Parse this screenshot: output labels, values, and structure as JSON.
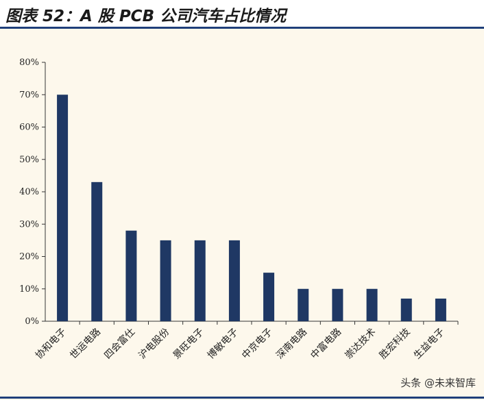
{
  "title": "图表 52：A 股 PCB 公司汽车占比情况",
  "watermark": "头条 @未来智库",
  "colors": {
    "bar": "#1f3864",
    "rule": "#1f3f7a",
    "panel_bg": "#fdf8ec"
  },
  "chart_data": {
    "type": "bar",
    "title": "图表 52：A 股 PCB 公司汽车占比情况",
    "xlabel": "",
    "ylabel": "",
    "categories": [
      "协和电子",
      "世运电路",
      "四会富仕",
      "沪电股份",
      "景旺电子",
      "博敏电子",
      "中京电子",
      "深南电路",
      "中富电路",
      "崇达技术",
      "胜宏科技",
      "生益电子"
    ],
    "values": [
      0.7,
      0.43,
      0.28,
      0.25,
      0.25,
      0.25,
      0.15,
      0.1,
      0.1,
      0.1,
      0.07,
      0.07
    ],
    "ylim": [
      0,
      0.8
    ],
    "yticks": [
      "0%",
      "10%",
      "20%",
      "30%",
      "40%",
      "50%",
      "60%",
      "70%",
      "80%"
    ],
    "grid": false,
    "legend": "none"
  }
}
